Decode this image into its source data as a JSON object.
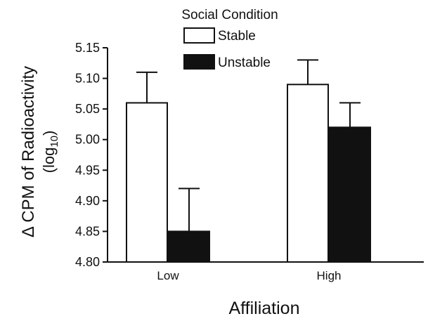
{
  "chart_data": {
    "type": "bar",
    "title": "",
    "xlabel": "Affiliation",
    "ylabel": "Δ CPM of Radioactivity",
    "ylabel_unit": "(log",
    "ylabel_unit_sub": "10",
    "ylabel_unit_close": ")",
    "ylim": [
      4.8,
      5.15
    ],
    "yticks": [
      "4.80",
      "4.85",
      "4.90",
      "4.95",
      "5.00",
      "5.05",
      "5.10",
      "5.15"
    ],
    "categories": [
      "Low",
      "High"
    ],
    "legend": {
      "title": "Social Condition",
      "placement": "top-center"
    },
    "series": [
      {
        "name": "Stable",
        "color": "#ffffff",
        "values": [
          5.06,
          5.09
        ],
        "error_upper": [
          5.11,
          5.13
        ]
      },
      {
        "name": "Unstable",
        "color": "#111111",
        "values": [
          4.85,
          5.02
        ],
        "error_upper": [
          4.92,
          5.06
        ]
      }
    ],
    "grid": false
  }
}
